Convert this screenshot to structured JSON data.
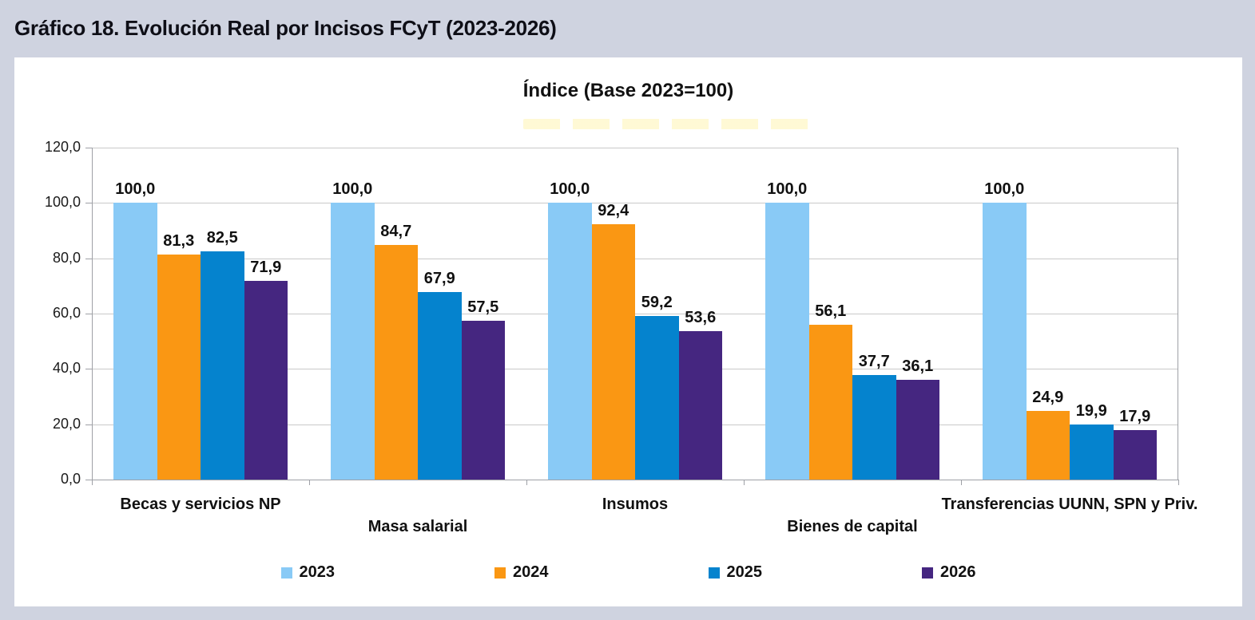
{
  "window": {
    "title": "Gráfico 18. Evolución Real por Incisos FCyT (2023-2026)"
  },
  "chart_data": {
    "type": "bar",
    "title": "Índice (Base 2023=100)",
    "categories": [
      "Becas y servicios NP",
      "Masa salarial",
      "Insumos",
      "Bienes de capital",
      "Transferencias UUNN, SPN y Priv."
    ],
    "series": [
      {
        "name": "2023",
        "color": "#89CAF6",
        "values": [
          100.0,
          100.0,
          100.0,
          100.0,
          100.0
        ]
      },
      {
        "name": "2024",
        "color": "#FA9713",
        "values": [
          81.3,
          84.7,
          92.4,
          56.1,
          24.9
        ]
      },
      {
        "name": "2025",
        "color": "#0583CE",
        "values": [
          82.5,
          67.9,
          59.2,
          37.7,
          19.9
        ]
      },
      {
        "name": "2026",
        "color": "#452680",
        "values": [
          71.9,
          57.5,
          53.6,
          36.1,
          17.9
        ]
      }
    ],
    "ylim": [
      0,
      120
    ],
    "yticks": [
      0,
      20,
      40,
      60,
      80,
      100,
      120
    ],
    "ytick_labels": [
      "0,0",
      "20,0",
      "40,0",
      "60,0",
      "80,0",
      "100,0",
      "120,0"
    ],
    "grid": true,
    "legend_position": "bottom",
    "decimal_separator": ","
  },
  "colors": {
    "background": "#CFD3E0",
    "panel": "#FFFFFF",
    "grid": "#C9C9C9",
    "axis": "#9EA0A6",
    "text": "#111111"
  }
}
